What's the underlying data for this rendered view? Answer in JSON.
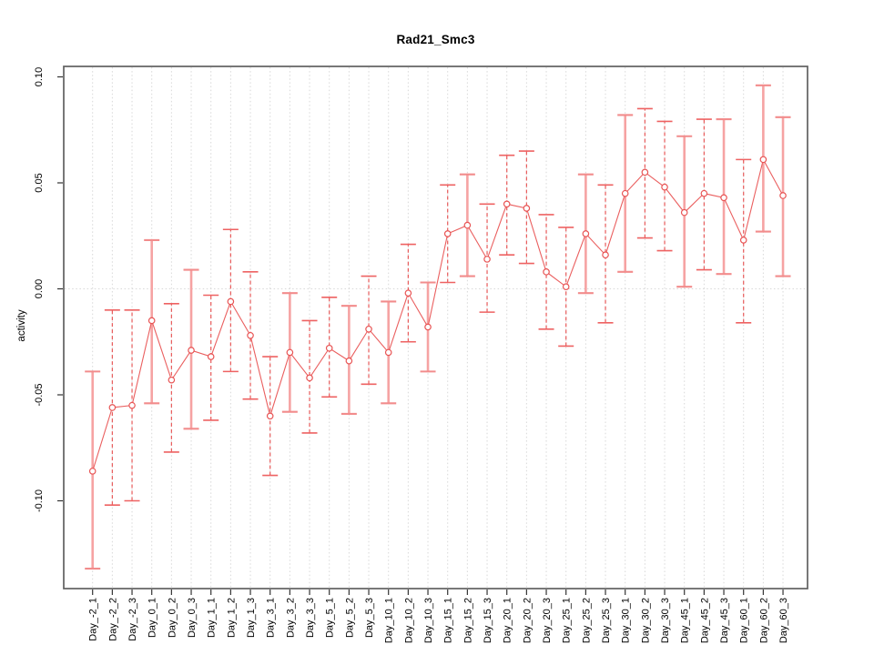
{
  "chart_data": {
    "type": "scatter",
    "title": "Rad21_Smc3",
    "xlabel": "",
    "ylabel": "activity",
    "ylim": [
      -0.141,
      0.105
    ],
    "yticks": [
      "0.10",
      "0.05",
      "0.00",
      "-0.05",
      "-0.10"
    ],
    "ytick_values": [
      0.1,
      0.05,
      0.0,
      -0.05,
      -0.1
    ],
    "grid": "dotted vertical gridline at each category; dotted horizontal line at y=0; no legend",
    "legend_position": "none",
    "categories": [
      "Day_-2_1",
      "Day_-2_2",
      "Day_-2_3",
      "Day_0_1",
      "Day_0_2",
      "Day_0_3",
      "Day_1_1",
      "Day_1_2",
      "Day_1_3",
      "Day_3_1",
      "Day_3_2",
      "Day_3_3",
      "Day_5_1",
      "Day_5_2",
      "Day_5_3",
      "Day_10_1",
      "Day_10_2",
      "Day_10_3",
      "Day_15_1",
      "Day_15_2",
      "Day_15_3",
      "Day_20_1",
      "Day_20_2",
      "Day_20_3",
      "Day_25_1",
      "Day_25_2",
      "Day_25_3",
      "Day_30_1",
      "Day_30_2",
      "Day_30_3",
      "Day_45_1",
      "Day_45_2",
      "Day_45_3",
      "Day_60_1",
      "Day_60_2",
      "Day_60_3"
    ],
    "series": [
      {
        "name": "activity",
        "marker": "open-circle",
        "connected": true,
        "values": [
          -0.086,
          -0.056,
          -0.055,
          -0.015,
          -0.043,
          -0.029,
          -0.032,
          -0.006,
          -0.022,
          -0.06,
          -0.03,
          -0.042,
          -0.028,
          -0.034,
          -0.019,
          -0.03,
          -0.002,
          -0.018,
          0.026,
          0.03,
          0.014,
          0.04,
          0.038,
          0.008,
          0.001,
          0.026,
          0.016,
          0.045,
          0.055,
          0.048,
          0.036,
          0.045,
          0.043,
          0.023,
          0.061,
          0.044
        ],
        "error_lower": [
          -0.132,
          -0.102,
          -0.1,
          -0.054,
          -0.077,
          -0.066,
          -0.062,
          -0.039,
          -0.052,
          -0.088,
          -0.058,
          -0.068,
          -0.051,
          -0.059,
          -0.045,
          -0.054,
          -0.025,
          -0.039,
          0.003,
          0.006,
          -0.011,
          0.016,
          0.012,
          -0.019,
          -0.027,
          -0.002,
          -0.016,
          0.008,
          0.024,
          0.018,
          0.001,
          0.009,
          0.007,
          -0.016,
          0.027,
          0.006
        ],
        "error_upper": [
          -0.039,
          -0.01,
          -0.01,
          0.023,
          -0.007,
          0.009,
          -0.003,
          0.028,
          0.008,
          -0.032,
          -0.002,
          -0.015,
          -0.004,
          -0.008,
          0.006,
          -0.006,
          0.021,
          0.003,
          0.049,
          0.054,
          0.04,
          0.063,
          0.065,
          0.035,
          0.029,
          0.054,
          0.049,
          0.082,
          0.085,
          0.079,
          0.072,
          0.08,
          0.08,
          0.061,
          0.096,
          0.081
        ],
        "bar_styles": [
          "solid",
          "dashed",
          "dashed",
          "solid",
          "dashed",
          "solid",
          "dashed",
          "dashed",
          "dashed",
          "dashed",
          "solid",
          "dashed",
          "dashed",
          "solid",
          "dashed",
          "solid",
          "dashed",
          "solid",
          "dashed",
          "solid",
          "dashed",
          "dashed",
          "dashed",
          "dashed",
          "dashed",
          "solid",
          "dashed",
          "solid",
          "dashed",
          "dashed",
          "solid",
          "dashed",
          "solid",
          "dashed",
          "solid",
          "solid"
        ]
      }
    ],
    "colors": {
      "bar_solid": "#f6a3a3",
      "cap_solid": "#f28c8c",
      "bar_dashed": "#e85a5a",
      "cap_dashed": "#ee6262",
      "point_stroke": "#e85454",
      "point_fill": "#ffffff",
      "connector": "#ea5f5f",
      "grid": "#d8d8d8",
      "box": "#606060",
      "tick": "#333333",
      "text": "#000000"
    }
  }
}
